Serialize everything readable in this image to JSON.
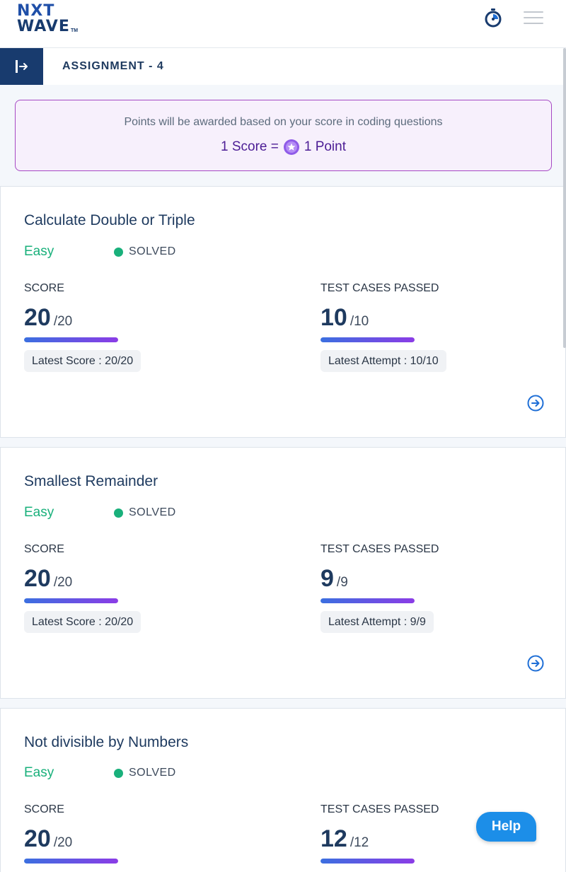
{
  "header": {
    "logo_line1": "NXT",
    "logo_line2": "WAVE",
    "logo_tm": "TM",
    "timer_icon": "stopwatch-icon",
    "menu_icon": "hamburger-icon"
  },
  "subheader": {
    "title": "ASSIGNMENT - 4",
    "toggle_icon": "sidebar-expand-icon"
  },
  "banner": {
    "text": "Points will be awarded based on your score in coding questions",
    "score_text": "1 Score =",
    "point_text": "1 Point"
  },
  "labels": {
    "score": "SCORE",
    "test_cases": "TEST CASES PASSED"
  },
  "questions": [
    {
      "title": "Calculate Double or Triple",
      "difficulty": "Easy",
      "status": "SOLVED",
      "score": "20",
      "score_max": "/20",
      "score_fraction": 1.0,
      "tests": "10",
      "tests_max": "/10",
      "tests_fraction": 1.0,
      "latest_score": "Latest Score : 20/20",
      "latest_attempt": "Latest Attempt : 10/10"
    },
    {
      "title": "Smallest Remainder",
      "difficulty": "Easy",
      "status": "SOLVED",
      "score": "20",
      "score_max": "/20",
      "score_fraction": 1.0,
      "tests": "9",
      "tests_max": "/9",
      "tests_fraction": 1.0,
      "latest_score": "Latest Score : 20/20",
      "latest_attempt": "Latest Attempt : 9/9"
    },
    {
      "title": "Not divisible by Numbers",
      "difficulty": "Easy",
      "status": "SOLVED",
      "score": "20",
      "score_max": "/20",
      "score_fraction": 1.0,
      "tests": "12",
      "tests_max": "/12",
      "tests_fraction": 1.0
    }
  ],
  "help": {
    "label": "Help"
  },
  "colors": {
    "brand_navy": "#183b6e",
    "easy_green": "#19b07b",
    "banner_purple": "#a649c4",
    "help_blue": "#1c8ee8"
  }
}
